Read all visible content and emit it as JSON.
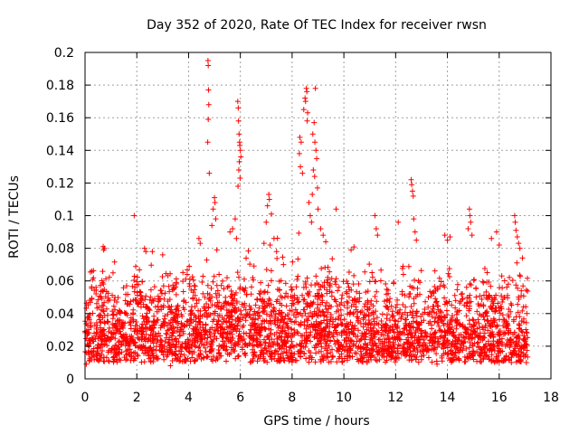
{
  "chart_data": {
    "type": "scatter",
    "title": "Day 352 of 2020, Rate Of TEC Index for receiver rwsn",
    "xlabel": "GPS time / hours",
    "ylabel": "ROTI / TECUs",
    "xlim": [
      0,
      18
    ],
    "ylim": [
      0,
      0.2
    ],
    "xticks": [
      "0",
      "2",
      "4",
      "6",
      "8",
      "10",
      "12",
      "14",
      "16",
      "18"
    ],
    "yticks": [
      "0",
      "0.02",
      "0.04",
      "0.06",
      "0.08",
      "0.1",
      "0.12",
      "0.14",
      "0.16",
      "0.18",
      "0.2"
    ],
    "grid": true,
    "marker": "+",
    "color": "#ff0000",
    "series": [
      {
        "name": "ROTI",
        "data_extent_hours": [
          0,
          17.1
        ],
        "baseline_typical": [
          0.01,
          0.06
        ],
        "points": [
          [
            4.75,
            0.195
          ],
          [
            4.76,
            0.192
          ],
          [
            4.77,
            0.177
          ],
          [
            4.78,
            0.168
          ],
          [
            4.76,
            0.159
          ],
          [
            4.74,
            0.145
          ],
          [
            4.8,
            0.126
          ],
          [
            5.0,
            0.111
          ],
          [
            5.02,
            0.108
          ],
          [
            4.95,
            0.104
          ],
          [
            5.05,
            0.098
          ],
          [
            4.9,
            0.094
          ],
          [
            5.9,
            0.17
          ],
          [
            5.92,
            0.166
          ],
          [
            5.93,
            0.158
          ],
          [
            5.95,
            0.15
          ],
          [
            5.97,
            0.145
          ],
          [
            5.98,
            0.143
          ],
          [
            6.0,
            0.14
          ],
          [
            6.02,
            0.136
          ],
          [
            5.96,
            0.133
          ],
          [
            5.94,
            0.128
          ],
          [
            5.99,
            0.123
          ],
          [
            5.91,
            0.118
          ],
          [
            5.8,
            0.098
          ],
          [
            5.7,
            0.092
          ],
          [
            5.6,
            0.09
          ],
          [
            5.85,
            0.086
          ],
          [
            7.1,
            0.113
          ],
          [
            7.12,
            0.11
          ],
          [
            7.05,
            0.106
          ],
          [
            7.2,
            0.101
          ],
          [
            7.0,
            0.096
          ],
          [
            7.3,
            0.086
          ],
          [
            7.15,
            0.082
          ],
          [
            7.4,
            0.078
          ],
          [
            8.55,
            0.178
          ],
          [
            8.57,
            0.176
          ],
          [
            8.5,
            0.172
          ],
          [
            8.52,
            0.17
          ],
          [
            8.45,
            0.165
          ],
          [
            8.6,
            0.163
          ],
          [
            8.58,
            0.158
          ],
          [
            8.3,
            0.148
          ],
          [
            8.35,
            0.145
          ],
          [
            8.28,
            0.138
          ],
          [
            8.32,
            0.13
          ],
          [
            8.4,
            0.126
          ],
          [
            8.9,
            0.178
          ],
          [
            8.85,
            0.157
          ],
          [
            8.8,
            0.15
          ],
          [
            8.88,
            0.145
          ],
          [
            8.92,
            0.14
          ],
          [
            8.95,
            0.135
          ],
          [
            8.82,
            0.128
          ],
          [
            8.87,
            0.124
          ],
          [
            8.98,
            0.117
          ],
          [
            8.78,
            0.113
          ],
          [
            8.65,
            0.108
          ],
          [
            9.0,
            0.104
          ],
          [
            8.7,
            0.1
          ],
          [
            8.75,
            0.096
          ],
          [
            9.1,
            0.092
          ],
          [
            9.2,
            0.088
          ],
          [
            9.3,
            0.084
          ],
          [
            9.7,
            0.104
          ],
          [
            1.9,
            0.1
          ],
          [
            0.7,
            0.081
          ],
          [
            0.72,
            0.079
          ],
          [
            0.75,
            0.08
          ],
          [
            2.3,
            0.08
          ],
          [
            2.35,
            0.078
          ],
          [
            2.6,
            0.078
          ],
          [
            3.0,
            0.076
          ],
          [
            4.4,
            0.086
          ],
          [
            4.45,
            0.083
          ],
          [
            11.2,
            0.1
          ],
          [
            11.25,
            0.092
          ],
          [
            11.3,
            0.088
          ],
          [
            12.1,
            0.096
          ],
          [
            12.6,
            0.122
          ],
          [
            12.62,
            0.119
          ],
          [
            12.65,
            0.115
          ],
          [
            12.68,
            0.112
          ],
          [
            12.7,
            0.098
          ],
          [
            12.75,
            0.09
          ],
          [
            12.8,
            0.085
          ],
          [
            13.9,
            0.088
          ],
          [
            14.0,
            0.085
          ],
          [
            14.1,
            0.087
          ],
          [
            14.85,
            0.104
          ],
          [
            14.87,
            0.1
          ],
          [
            14.9,
            0.096
          ],
          [
            14.8,
            0.092
          ],
          [
            14.95,
            0.088
          ],
          [
            15.9,
            0.09
          ],
          [
            15.7,
            0.086
          ],
          [
            16.0,
            0.082
          ],
          [
            16.6,
            0.1
          ],
          [
            16.62,
            0.096
          ],
          [
            16.65,
            0.091
          ],
          [
            16.7,
            0.087
          ],
          [
            16.75,
            0.083
          ],
          [
            16.8,
            0.08
          ],
          [
            16.9,
            0.074
          ],
          [
            0.05,
            0.009
          ],
          [
            17.05,
            0.01
          ],
          [
            3.3,
            0.008
          ],
          [
            10.9,
            0.01
          ],
          [
            13.6,
            0.009
          ]
        ]
      }
    ]
  }
}
